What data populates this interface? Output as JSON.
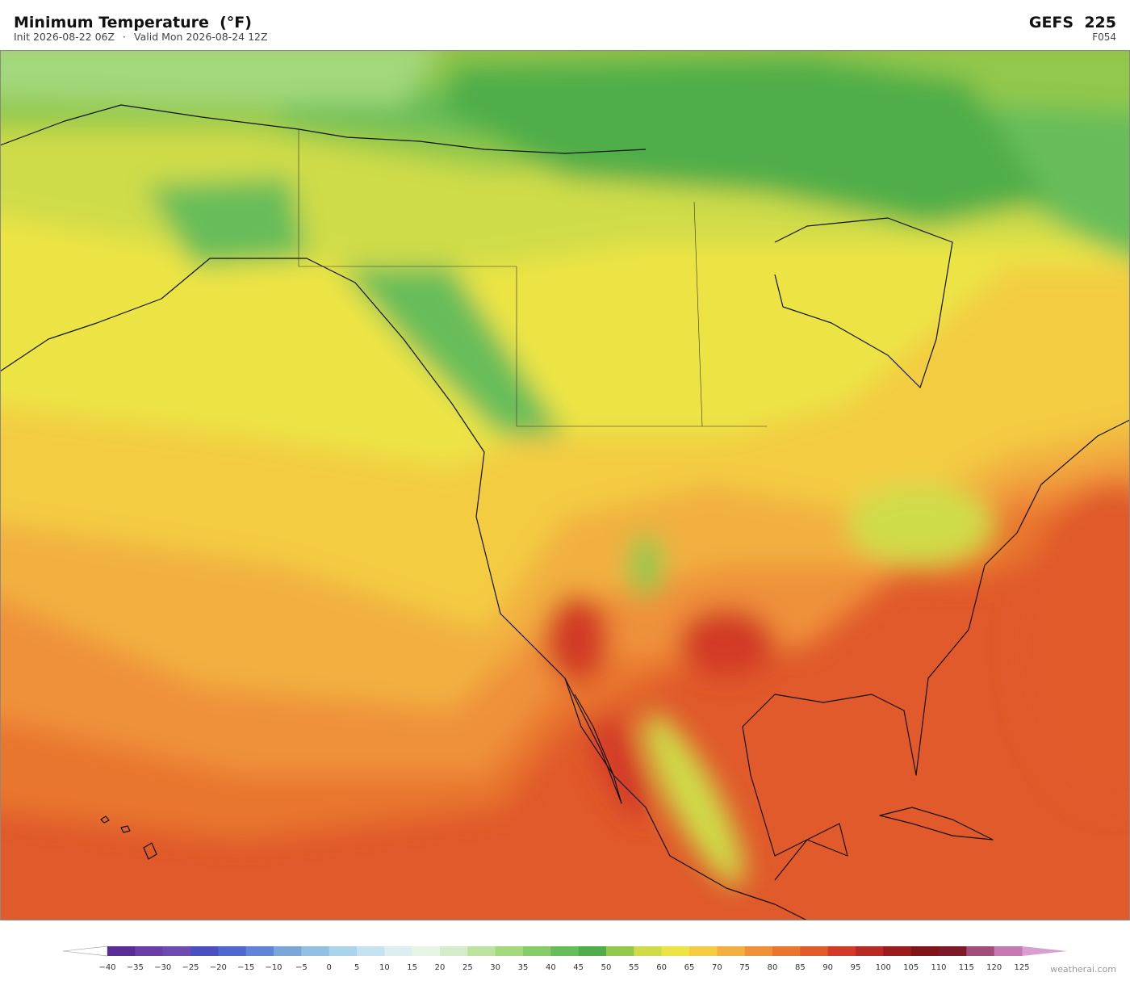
{
  "header": {
    "title": "Minimum Temperature  (°F)",
    "init": "Init 2026-08-22 06Z",
    "separator": "·",
    "valid": "Valid Mon 2026-08-24 12Z",
    "model": "GEFS  225",
    "forecast_hour": "F054"
  },
  "colorbar": {
    "labels": [
      "−40",
      "−35",
      "−30",
      "−25",
      "−20",
      "−15",
      "−10",
      "−5",
      "0",
      "5",
      "10",
      "15",
      "20",
      "25",
      "30",
      "35",
      "40",
      "45",
      "50",
      "55",
      "60",
      "65",
      "70",
      "75",
      "80",
      "85",
      "90",
      "95",
      "100",
      "105",
      "110",
      "115",
      "120",
      "125"
    ],
    "colors": [
      "#5a2d96",
      "#6a3ea6",
      "#6d4bb0",
      "#4a50c0",
      "#4f68cf",
      "#6284d6",
      "#7aa6d8",
      "#93c0e2",
      "#aad4ea",
      "#c4e2ef",
      "#dceef0",
      "#e8f4e6",
      "#d4ecca",
      "#bde3a0",
      "#a3d87c",
      "#86cc6a",
      "#67bd5a",
      "#4fae4a",
      "#92c84c",
      "#cfdc4a",
      "#ece445",
      "#f3cc43",
      "#f2b040",
      "#ef913a",
      "#e8762f",
      "#e05a2b",
      "#d23b27",
      "#b82a24",
      "#9b1c1e",
      "#7f1519",
      "#7d1a2a",
      "#a24d7a",
      "#c47ab0"
    ],
    "under_color": "#ffffff",
    "over_color": "#d8a0d0"
  },
  "footer": {
    "credit": "weatherai.com"
  }
}
